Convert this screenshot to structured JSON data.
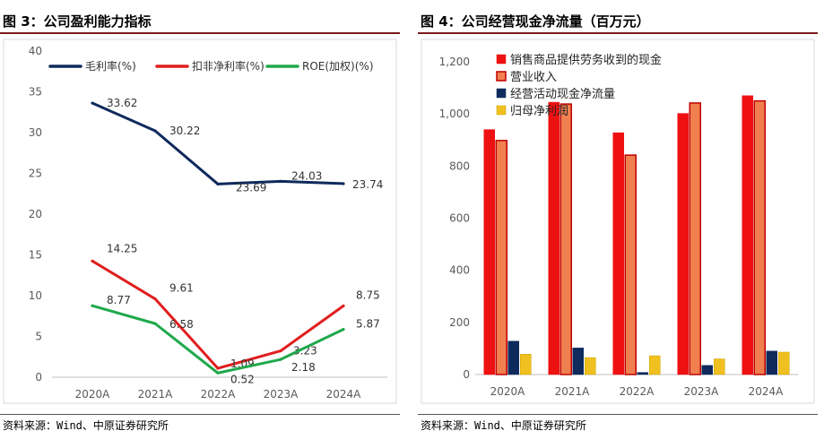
{
  "left": {
    "figure_title": "图 3：公司盈利能力指标",
    "source": "资料来源：Wind、中原证券研究所",
    "chart_data": {
      "type": "line",
      "categories": [
        "2020A",
        "2021A",
        "2022A",
        "2023A",
        "2024A"
      ],
      "yticks": [
        "0",
        "5",
        "10",
        "15",
        "20",
        "25",
        "30",
        "35",
        "40"
      ],
      "ylim": [
        0,
        40
      ],
      "legend_position": "top",
      "grid": false,
      "series": [
        {
          "name": "毛利率(%)",
          "color": "#0f2a5c",
          "values": [
            33.62,
            30.22,
            23.69,
            24.03,
            23.74
          ],
          "labels": [
            "33.62",
            "30.22",
            "23.69",
            "24.03",
            "23.74"
          ]
        },
        {
          "name": "扣非净利率(%)",
          "color": "#e01e1e",
          "values": [
            14.25,
            9.61,
            1.09,
            3.23,
            8.75
          ],
          "labels": [
            "14.25",
            "9.61",
            "1.09",
            "3.23",
            "8.75"
          ]
        },
        {
          "name": "ROE(加权)(%)",
          "color": "#1fa84a",
          "values": [
            8.77,
            6.58,
            0.52,
            2.18,
            5.87
          ],
          "labels": [
            "8.77",
            "6.58",
            "0.52",
            "2.18",
            "5.87"
          ]
        }
      ]
    }
  },
  "right": {
    "figure_title": "图 4：公司经营现金净流量（百万元）",
    "source": "资料来源：Wind、中原证券研究所",
    "chart_data": {
      "type": "bar",
      "categories": [
        "2020A",
        "2021A",
        "2022A",
        "2023A",
        "2024A"
      ],
      "yticks": [
        "0",
        "200",
        "400",
        "600",
        "800",
        "1,000",
        "1,200"
      ],
      "ylim": [
        0,
        1200
      ],
      "legend_position": "top-left",
      "grid": false,
      "series": [
        {
          "name": "销售商品提供劳务收到的现金",
          "color": "#ee1111",
          "stroke": "#ee1111",
          "values": [
            940,
            1045,
            928,
            1002,
            1070
          ]
        },
        {
          "name": "营业收入",
          "color": "#f08050",
          "stroke": "#c00000",
          "values": [
            898,
            1038,
            842,
            1042,
            1050
          ]
        },
        {
          "name": "经营活动现金净流量",
          "color": "#0f2a5c",
          "stroke": "#0f2a5c",
          "values": [
            128,
            102,
            8,
            35,
            90
          ]
        },
        {
          "name": "归母净利润",
          "color": "#f0c020",
          "stroke": "#c8a000",
          "values": [
            78,
            65,
            72,
            60,
            86
          ]
        }
      ]
    }
  }
}
